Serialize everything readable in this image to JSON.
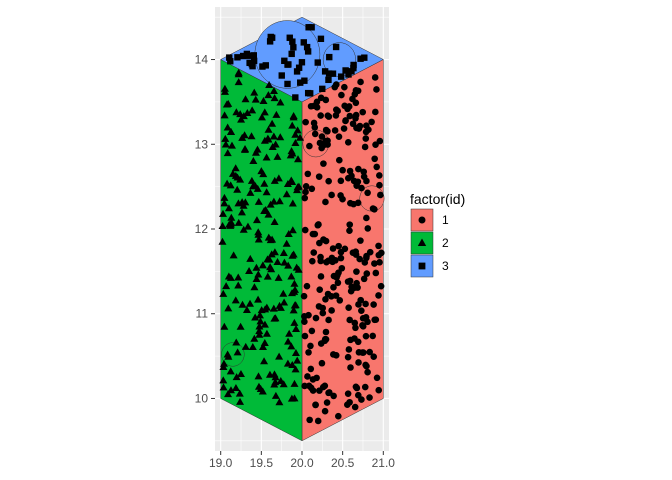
{
  "chart_data": {
    "type": "scatter",
    "title": "",
    "xlabel": "",
    "ylabel": "",
    "xlim": [
      18.93,
      21.07
    ],
    "ylim": [
      9.38,
      14.62
    ],
    "x_ticks": [
      19.0,
      19.5,
      20.0,
      20.5,
      21.0
    ],
    "x_tick_labels": [
      "19.0",
      "19.5",
      "20.0",
      "20.5",
      "21.0"
    ],
    "y_ticks": [
      10,
      11,
      12,
      13,
      14
    ],
    "y_tick_labels": [
      "10",
      "11",
      "12",
      "13",
      "14"
    ],
    "grid": true,
    "panel_background": "#EBEBEB",
    "legend": {
      "title": "factor(id)",
      "position": "right",
      "entries": [
        {
          "label": "1",
          "color": "#F8766D",
          "shape": "circle"
        },
        {
          "label": "2",
          "color": "#00BA38",
          "shape": "triangle"
        },
        {
          "label": "3",
          "color": "#619CFF",
          "shape": "square"
        }
      ]
    },
    "polygons": [
      {
        "id": "1",
        "fill": "#F8766D",
        "vertices": [
          [
            20.0,
            9.5
          ],
          [
            21.0,
            10.0
          ],
          [
            21.0,
            14.0
          ],
          [
            20.0,
            13.5
          ]
        ]
      },
      {
        "id": "2",
        "fill": "#00BA38",
        "vertices": [
          [
            19.0,
            10.0
          ],
          [
            20.0,
            9.5
          ],
          [
            20.0,
            13.5
          ],
          [
            19.0,
            14.0
          ]
        ]
      },
      {
        "id": "3",
        "fill": "#619CFF",
        "vertices": [
          [
            19.0,
            14.0
          ],
          [
            20.0,
            13.5
          ],
          [
            21.0,
            14.0
          ],
          [
            20.0,
            14.5
          ]
        ]
      }
    ],
    "circles": [
      {
        "id": "3",
        "cx": 19.82,
        "cy": 14.06,
        "r": 0.4
      },
      {
        "id": "3",
        "cx": 20.46,
        "cy": 14.0,
        "r": 0.2
      },
      {
        "id": "1",
        "cx": 20.17,
        "cy": 13.01,
        "r": 0.16
      },
      {
        "id": "1",
        "cx": 20.86,
        "cy": 12.36,
        "r": 0.15
      },
      {
        "id": "2",
        "cx": 19.15,
        "cy": 10.52,
        "r": 0.14
      }
    ],
    "series": [
      {
        "name": "1",
        "shape": "circle",
        "n_points": 260,
        "x_range": [
          20.02,
          20.98
        ],
        "y_range": [
          9.55,
          13.95
        ]
      },
      {
        "name": "2",
        "shape": "triangle",
        "n_points": 240,
        "x_range": [
          19.02,
          19.98
        ],
        "y_range": [
          9.95,
          13.95
        ]
      },
      {
        "name": "3",
        "shape": "square",
        "n_points": 55,
        "x_range": [
          19.05,
          20.95
        ],
        "y_range": [
          13.52,
          14.48
        ]
      }
    ]
  }
}
